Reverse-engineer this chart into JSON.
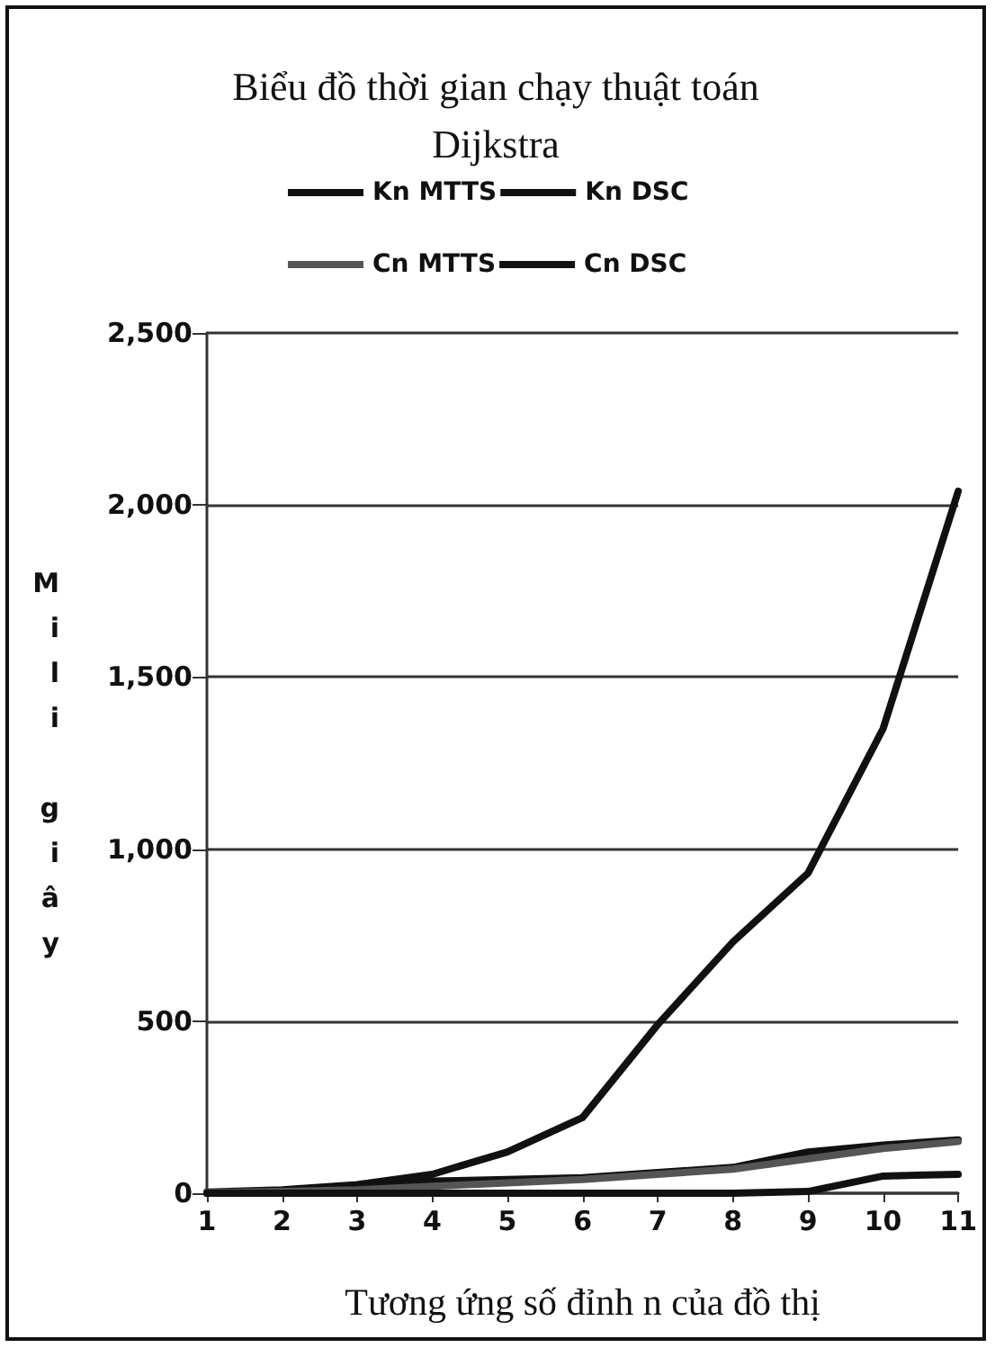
{
  "chart_data": {
    "type": "line",
    "title": "Biểu đồ thời gian chạy thuật toán\nDijkstra",
    "xlabel": "Tương ứng số đỉnh n của đồ thị",
    "ylabel": "Mili giây",
    "categories": [
      "1",
      "2",
      "3",
      "4",
      "5",
      "6",
      "7",
      "8",
      "9",
      "10",
      "11"
    ],
    "series": [
      {
        "name": "Kn MTTS",
        "color": "#111111",
        "values": [
          3,
          10,
          25,
          55,
          120,
          220,
          490,
          730,
          930,
          1350,
          2040
        ]
      },
      {
        "name": "Kn DSC",
        "color": "#111111",
        "values": [
          0,
          5,
          15,
          35,
          40,
          45,
          60,
          75,
          120,
          140,
          155
        ]
      },
      {
        "name": "Cn MTTS",
        "color": "#555555",
        "values": [
          2,
          5,
          10,
          20,
          30,
          40,
          55,
          70,
          100,
          130,
          150
        ]
      },
      {
        "name": "Cn DSC",
        "color": "#111111",
        "values": [
          0,
          0,
          0,
          0,
          0,
          0,
          0,
          0,
          5,
          50,
          55
        ]
      }
    ],
    "ylim": [
      0,
      2500
    ],
    "yticks": [
      0,
      500,
      {
        "value": 1000,
        "label": "1,000"
      },
      {
        "value": 1500,
        "label": "1,500"
      },
      {
        "value": 2000,
        "label": "2,000"
      },
      {
        "value": 2500,
        "label": "2,500"
      }
    ],
    "grid": "y",
    "legend": "top",
    "marker": "none",
    "line_style": "solid"
  }
}
